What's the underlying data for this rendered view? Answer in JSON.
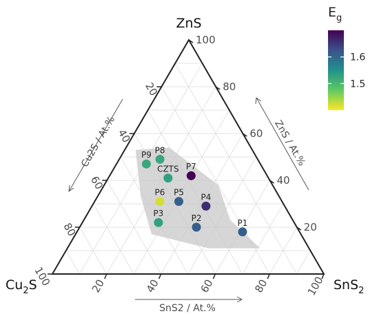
{
  "chart_data": {
    "type": "ternary-scatter",
    "vertices": {
      "top": "ZnS",
      "left_base": "Cu",
      "left_sub": "2",
      "left_tail": "S",
      "right_base": "SnS",
      "right_sub": "2",
      "right_tail": ""
    },
    "axis_titles": {
      "left": "Cu2S / At.%",
      "right": "ZnS / At.%",
      "bottom": "SnS2 / At.%"
    },
    "axis_ticks": [
      "20",
      "40",
      "60",
      "80",
      "100"
    ],
    "axis_tick_values": [
      20,
      40,
      60,
      80,
      100
    ],
    "grid_step": 10,
    "grid": true,
    "colorbar": {
      "title_base": "E",
      "title_sub": "g",
      "min": 1.4,
      "max": 1.7,
      "ticks": [
        {
          "value": 1.5,
          "label": "1.5"
        },
        {
          "value": 1.6,
          "label": "1.6"
        }
      ],
      "colormap": "viridis-reversed"
    },
    "points": [
      {
        "label": "P1",
        "cu2s": 21,
        "zns": 18,
        "sns2": 61,
        "eg": 1.61
      },
      {
        "label": "P2",
        "cu2s": 37,
        "zns": 20,
        "sns2": 43,
        "eg": 1.61
      },
      {
        "label": "P3",
        "cu2s": 50,
        "zns": 22,
        "sns2": 28,
        "eg": 1.53
      },
      {
        "label": "P4",
        "cu2s": 29,
        "zns": 29,
        "sns2": 42,
        "eg": 1.66
      },
      {
        "label": "P5",
        "cu2s": 38,
        "zns": 31,
        "sns2": 31,
        "eg": 1.61
      },
      {
        "label": "P6",
        "cu2s": 45,
        "zns": 31,
        "sns2": 24,
        "eg": 1.42
      },
      {
        "label": "P7",
        "cu2s": 28,
        "zns": 42,
        "sns2": 30,
        "eg": 1.7
      },
      {
        "label": "CZTS",
        "cu2s": 37,
        "zns": 41,
        "sns2": 22,
        "eg": 1.53
      },
      {
        "label": "P8",
        "cu2s": 36,
        "zns": 49,
        "sns2": 15,
        "eg": 1.52
      },
      {
        "label": "P9",
        "cu2s": 42,
        "zns": 47,
        "sns2": 11,
        "eg": 1.52
      }
    ],
    "region": [
      {
        "cu2s": 23,
        "zns": 23,
        "sns2": 54
      },
      {
        "cu2s": 18,
        "zns": 11,
        "sns2": 71
      },
      {
        "cu2s": 37,
        "zns": 11,
        "sns2": 52
      },
      {
        "cu2s": 55,
        "zns": 17,
        "sns2": 28
      },
      {
        "cu2s": 51,
        "zns": 33,
        "sns2": 16
      },
      {
        "cu2s": 43,
        "zns": 53,
        "sns2": 4
      },
      {
        "cu2s": 30,
        "zns": 54,
        "sns2": 16
      },
      {
        "cu2s": 20,
        "zns": 38,
        "sns2": 42
      }
    ]
  }
}
